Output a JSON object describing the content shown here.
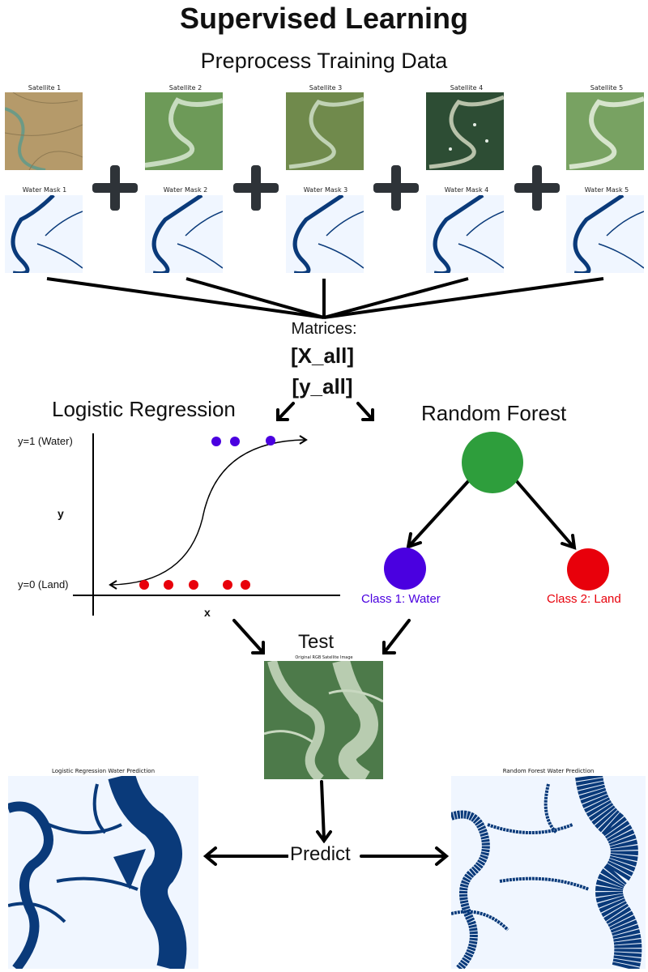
{
  "title": "Supervised Learning",
  "subtitle": "Preprocess Training Data",
  "satellite_labels": [
    "Satellite 1",
    "Satellite 2",
    "Satellite 3",
    "Satellite 4",
    "Satellite 5"
  ],
  "mask_labels": [
    "Water Mask 1",
    "Water Mask 2",
    "Water Mask 3",
    "Water Mask 4",
    "Water Mask 5"
  ],
  "matrices": {
    "label": "Matrices:",
    "x": "[X_all]",
    "y": "[y_all]"
  },
  "logistic": {
    "title": "Logistic Regression",
    "y1_label": "y=1 (Water)",
    "y0_label": "y=0 (Land)",
    "y_axis": "y",
    "x_axis": "x"
  },
  "forest": {
    "title": "Random Forest",
    "class1": "Class 1: Water",
    "class2": "Class 2: Land"
  },
  "test": {
    "title": "Test",
    "image_caption": "Original RGB Satellite Image"
  },
  "predict_label": "Predict",
  "lr_pred_caption": "Logistic Regression Water Prediction",
  "rf_pred_caption": "Random Forest Water Prediction",
  "colors": {
    "water_class": "#4a00e0",
    "land_class": "#e8000b",
    "root_node": "#2e9e3c",
    "mask_water": "#0a3a7a",
    "mask_bg": "#f0f6ff",
    "plus": "#2e3338"
  }
}
